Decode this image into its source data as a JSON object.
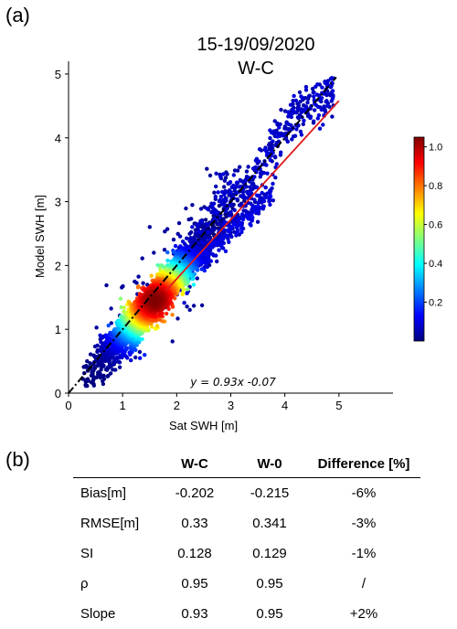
{
  "panel_a_label": "(a)",
  "panel_b_label": "(b)",
  "chart_data": {
    "type": "scatter",
    "title": "15-19/09/2020",
    "subtitle": "W-C",
    "xlabel": "Sat SWH [m]",
    "ylabel": "Model SWH [m]",
    "xlim": [
      0,
      6
    ],
    "ylim": [
      0,
      5.2
    ],
    "xticks": [
      "0",
      "1",
      "2",
      "3",
      "4",
      "5"
    ],
    "yticks": [
      "0",
      "1",
      "2",
      "3",
      "4",
      "5"
    ],
    "fit_equation": "y = 0.93x  -0.07",
    "fit_line": {
      "slope": 0.93,
      "intercept": -0.07,
      "color": "#e01b1b"
    },
    "identity_line": {
      "slope": 1,
      "intercept": 0,
      "color": "#000000",
      "style": "dash-dot"
    },
    "grid": false,
    "colorbar": {
      "range": [
        0,
        1.05
      ],
      "ticks": [
        "0.2",
        "0.4",
        "0.6",
        "0.8",
        "1.0"
      ],
      "colormap": "jet",
      "placement": "right"
    },
    "point_cloud": {
      "description": "dense scatter concentrated along 1:1 line, densest near x=1.6, y=1.5",
      "density_core": [
        1.6,
        1.5
      ],
      "x_range": [
        0.25,
        5.0
      ],
      "y_range": [
        0.3,
        4.85
      ]
    }
  },
  "stats_table": {
    "columns": [
      "",
      "W-C",
      "W-0",
      "Difference [%]"
    ],
    "rows": [
      {
        "label": "Bias",
        "unit": "[m]",
        "wc": "-0.202",
        "w0": "-0.215",
        "diff": "-6%"
      },
      {
        "label": "RMSE",
        "unit": "[m]",
        "wc": "0.33",
        "w0": "0.341",
        "diff": "-3%"
      },
      {
        "label": "SI",
        "unit": "",
        "wc": "0.128",
        "w0": "0.129",
        "diff": "-1%"
      },
      {
        "label": "ρ",
        "unit": "",
        "wc": "0.95",
        "w0": "0.95",
        "diff": "/"
      },
      {
        "label": "Slope",
        "unit": "",
        "wc": "0.93",
        "w0": "0.95",
        "diff": "+2%"
      }
    ]
  }
}
